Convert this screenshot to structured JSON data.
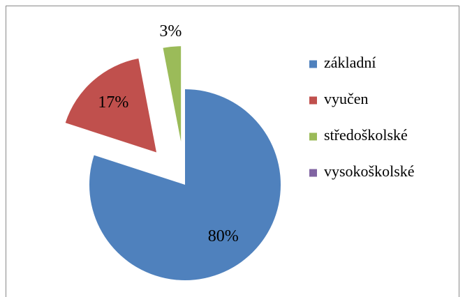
{
  "chart_data": {
    "type": "pie",
    "categories": [
      "základní",
      "vyučen",
      "středoškolské",
      "vysokoškolské"
    ],
    "values": [
      80,
      17,
      3,
      0
    ],
    "value_labels": [
      "80%",
      "17%",
      "3%",
      null
    ],
    "colors": [
      "#4f81bd",
      "#c0504d",
      "#9bbb59",
      "#8064a2"
    ],
    "explode": [
      false,
      true,
      true,
      false
    ],
    "legend": "right"
  }
}
